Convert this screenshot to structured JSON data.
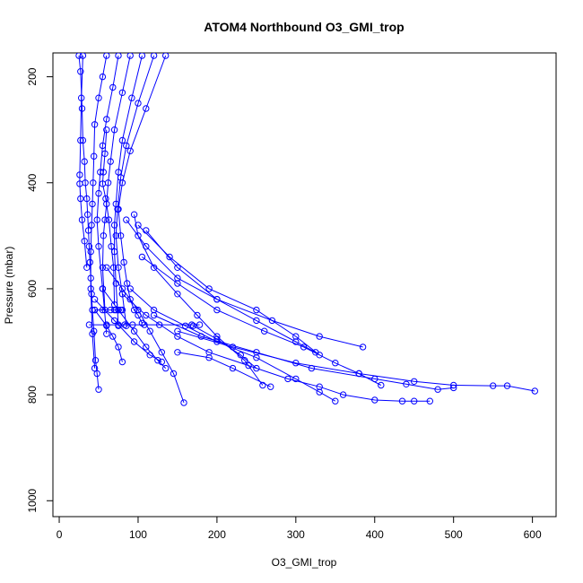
{
  "chart_data": {
    "type": "line",
    "title": "ATOM4 Northbound O3_GMI_trop",
    "xlabel": "O3_GMI_trop",
    "ylabel": "Pressure (mbar)",
    "xlim": [
      -8,
      630
    ],
    "ylim": [
      1030,
      155
    ],
    "y_reversed": true,
    "x_ticks": [
      0,
      100,
      200,
      300,
      400,
      500,
      600
    ],
    "y_ticks": [
      200,
      400,
      600,
      800,
      1000
    ],
    "grid": false,
    "legend": "none",
    "color": "#0000ff",
    "series": [
      {
        "x": [
          25,
          27,
          29,
          30,
          32,
          33,
          35,
          36,
          37,
          38,
          39,
          40,
          41,
          42,
          44,
          46,
          48,
          50
        ],
        "y": [
          160,
          190,
          260,
          320,
          360,
          400,
          430,
          460,
          490,
          520,
          550,
          580,
          610,
          640,
          680,
          735,
          760,
          790
        ]
      },
      {
        "x": [
          60,
          55,
          50,
          45,
          44,
          43,
          42,
          41,
          40,
          40,
          42,
          45
        ],
        "y": [
          160,
          200,
          240,
          290,
          350,
          400,
          440,
          480,
          530,
          600,
          685,
          750
        ]
      },
      {
        "x": [
          75,
          68,
          60,
          55,
          52,
          50,
          48,
          50,
          55,
          60
        ],
        "y": [
          160,
          220,
          280,
          330,
          380,
          420,
          470,
          520,
          600,
          685
        ]
      },
      {
        "x": [
          90,
          80,
          70,
          65,
          62,
          60,
          58,
          56,
          55,
          58
        ],
        "y": [
          160,
          230,
          300,
          360,
          400,
          440,
          470,
          500,
          560,
          640
        ]
      },
      {
        "x": [
          105,
          92,
          80,
          75,
          72,
          70,
          70,
          72,
          75
        ],
        "y": [
          160,
          240,
          320,
          380,
          440,
          480,
          530,
          590,
          670
        ]
      },
      {
        "x": [
          120,
          100,
          85,
          78,
          74,
          72,
          75,
          80,
          85
        ],
        "y": [
          160,
          250,
          330,
          390,
          450,
          500,
          560,
          610,
          670
        ]
      },
      {
        "x": [
          135,
          110,
          90,
          80,
          75,
          78,
          82,
          86,
          90,
          95,
          100,
          105
        ],
        "y": [
          160,
          260,
          340,
          400,
          450,
          500,
          550,
          590,
          620,
          640,
          650,
          665
        ]
      },
      {
        "x": [
          30,
          28,
          27,
          26,
          26,
          27,
          29,
          32,
          35
        ],
        "y": [
          160,
          240,
          320,
          385,
          402,
          430,
          470,
          510,
          560
        ]
      },
      {
        "x": [
          60,
          58,
          56,
          55,
          59,
          63,
          66,
          69,
          70
        ],
        "y": [
          300,
          345,
          380,
          402,
          430,
          470,
          520,
          560,
          630
        ]
      },
      {
        "x": [
          95,
          100,
          120,
          150,
          175,
          200,
          235,
          258
        ],
        "y": [
          460,
          500,
          560,
          610,
          650,
          690,
          735,
          782
        ]
      },
      {
        "x": [
          85,
          110,
          150,
          200,
          250,
          300,
          325
        ],
        "y": [
          470,
          520,
          580,
          620,
          660,
          700,
          720
        ]
      },
      {
        "x": [
          100,
          140,
          190,
          250,
          300,
          330
        ],
        "y": [
          480,
          540,
          600,
          640,
          690,
          725
        ]
      },
      {
        "x": [
          110,
          150,
          200,
          270,
          330,
          385
        ],
        "y": [
          490,
          560,
          620,
          660,
          690,
          710
        ]
      },
      {
        "x": [
          105,
          150,
          200,
          260,
          310,
          350,
          380,
          408
        ],
        "y": [
          540,
          590,
          640,
          680,
          710,
          740,
          760,
          782
        ]
      },
      {
        "x": [
          90,
          120,
          160,
          200,
          250,
          300,
          330,
          350
        ],
        "y": [
          600,
          640,
          670,
          700,
          730,
          770,
          795,
          812
        ]
      },
      {
        "x": [
          80,
          110,
          150,
          190,
          240,
          290,
          330,
          360,
          400,
          435,
          450,
          470
        ],
        "y": [
          610,
          650,
          690,
          720,
          745,
          770,
          785,
          800,
          810,
          812,
          812,
          812
        ]
      },
      {
        "x": [
          120,
          180,
          250,
          320,
          400,
          440,
          480,
          500
        ],
        "y": [
          650,
          690,
          720,
          750,
          770,
          780,
          790,
          787
        ]
      },
      {
        "x": [
          150,
          220,
          300,
          380,
          450,
          500,
          550,
          568,
          603
        ],
        "y": [
          680,
          710,
          740,
          760,
          775,
          782,
          783,
          783,
          793
        ]
      },
      {
        "x": [
          170,
          200,
          230,
          250
        ],
        "y": [
          670,
          695,
          725,
          750
        ]
      },
      {
        "x": [
          150,
          190,
          220,
          268
        ],
        "y": [
          720,
          730,
          750,
          785
        ]
      },
      {
        "x": [
          60,
          80,
          100,
          115,
          130,
          145,
          158
        ],
        "y": [
          560,
          600,
          640,
          680,
          720,
          760,
          815
        ]
      },
      {
        "x": [
          55,
          75,
          95,
          110,
          125,
          135
        ],
        "y": [
          600,
          640,
          680,
          710,
          735,
          750
        ]
      },
      {
        "x": [
          45,
          70,
          95,
          115,
          130
        ],
        "y": [
          620,
          660,
          700,
          725,
          738
        ]
      },
      {
        "x": [
          45,
          60,
          68,
          75,
          80
        ],
        "y": [
          640,
          670,
          690,
          710,
          738
        ]
      },
      {
        "x": [
          38,
          60,
          75,
          83,
          93,
          108,
          127,
          168,
          178
        ],
        "y": [
          668,
          668,
          668,
          668,
          668,
          668,
          668,
          668,
          668
        ]
      },
      {
        "x": [
          45,
          55,
          65,
          70,
          72,
          75,
          78,
          80
        ],
        "y": [
          640,
          640,
          640,
          640,
          640,
          640,
          640,
          640
        ]
      }
    ]
  }
}
